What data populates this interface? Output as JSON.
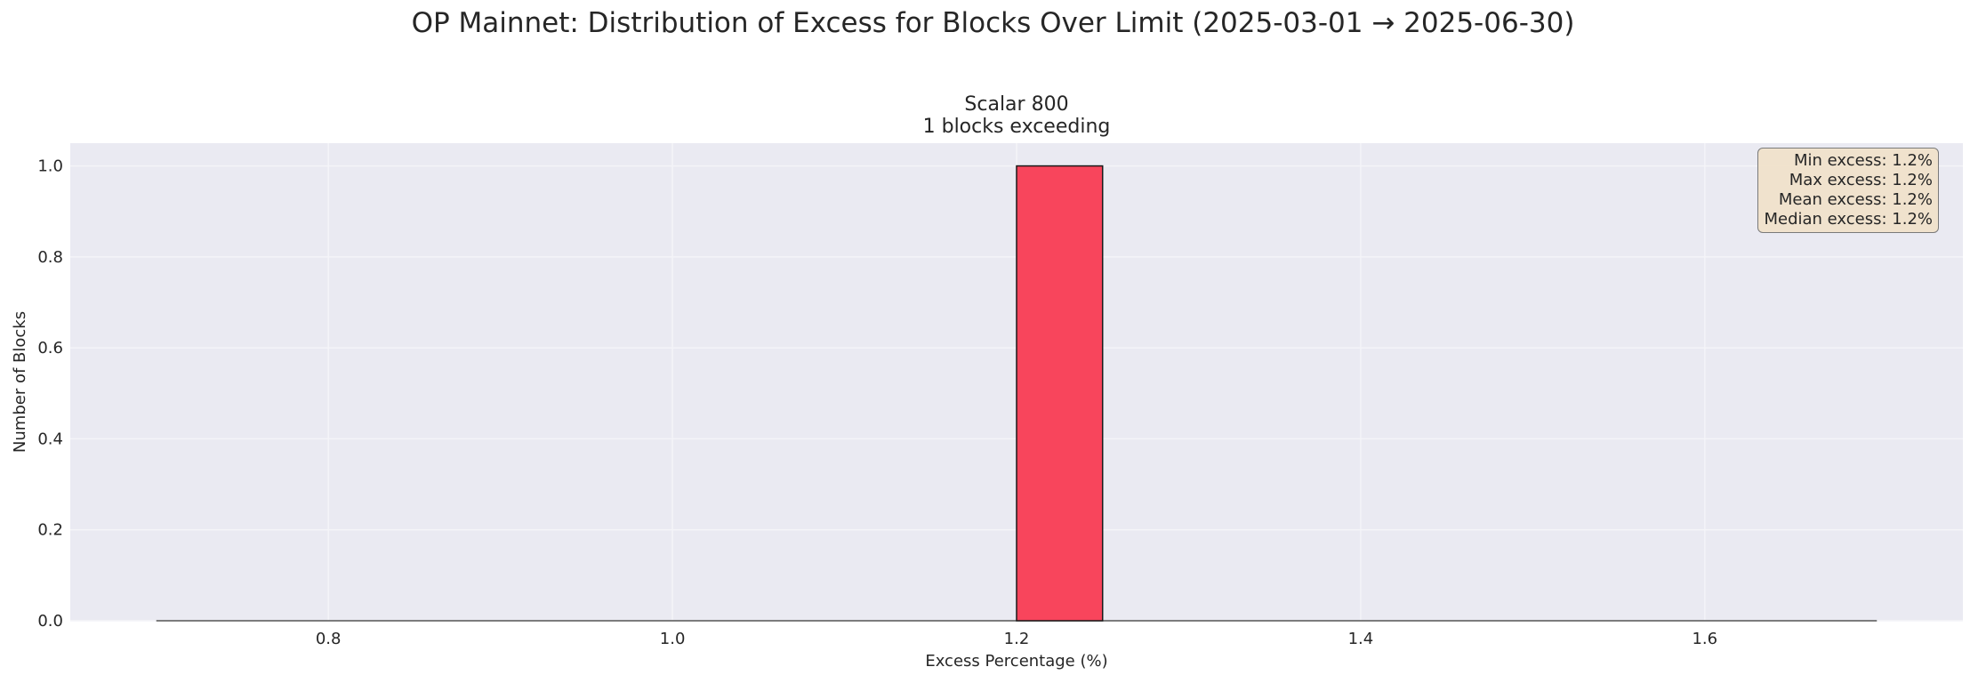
{
  "figure": {
    "title": "OP Mainnet: Distribution of Excess for Blocks Over Limit (2025-03-01 → 2025-06-30)"
  },
  "stats": {
    "min": "Min excess: 1.2%",
    "max": "Max excess: 1.2%",
    "mean": "Mean excess: 1.2%",
    "median": "Median excess: 1.2%"
  },
  "colors": {
    "bar": "#f8455c",
    "axes_bg": "#eaeaf2",
    "grid": "#f4f4f8"
  },
  "chart_data": {
    "type": "bar",
    "title": "Scalar 800",
    "subtitle": "1 blocks exceeding",
    "xlabel": "Excess Percentage (%)",
    "ylabel": "Number of Blocks",
    "xlim": [
      0.65,
      1.75
    ],
    "ylim": [
      0,
      1.05
    ],
    "xticks": [
      0.8,
      1.0,
      1.2,
      1.4,
      1.6
    ],
    "yticks": [
      0.0,
      0.2,
      0.4,
      0.6,
      0.8,
      1.0
    ],
    "bin_range": [
      0.7,
      1.7
    ],
    "bin_width": 0.05,
    "bins": [
      {
        "x0": 1.2,
        "x1": 1.25,
        "count": 1
      }
    ],
    "grid": true,
    "legend": "none"
  }
}
